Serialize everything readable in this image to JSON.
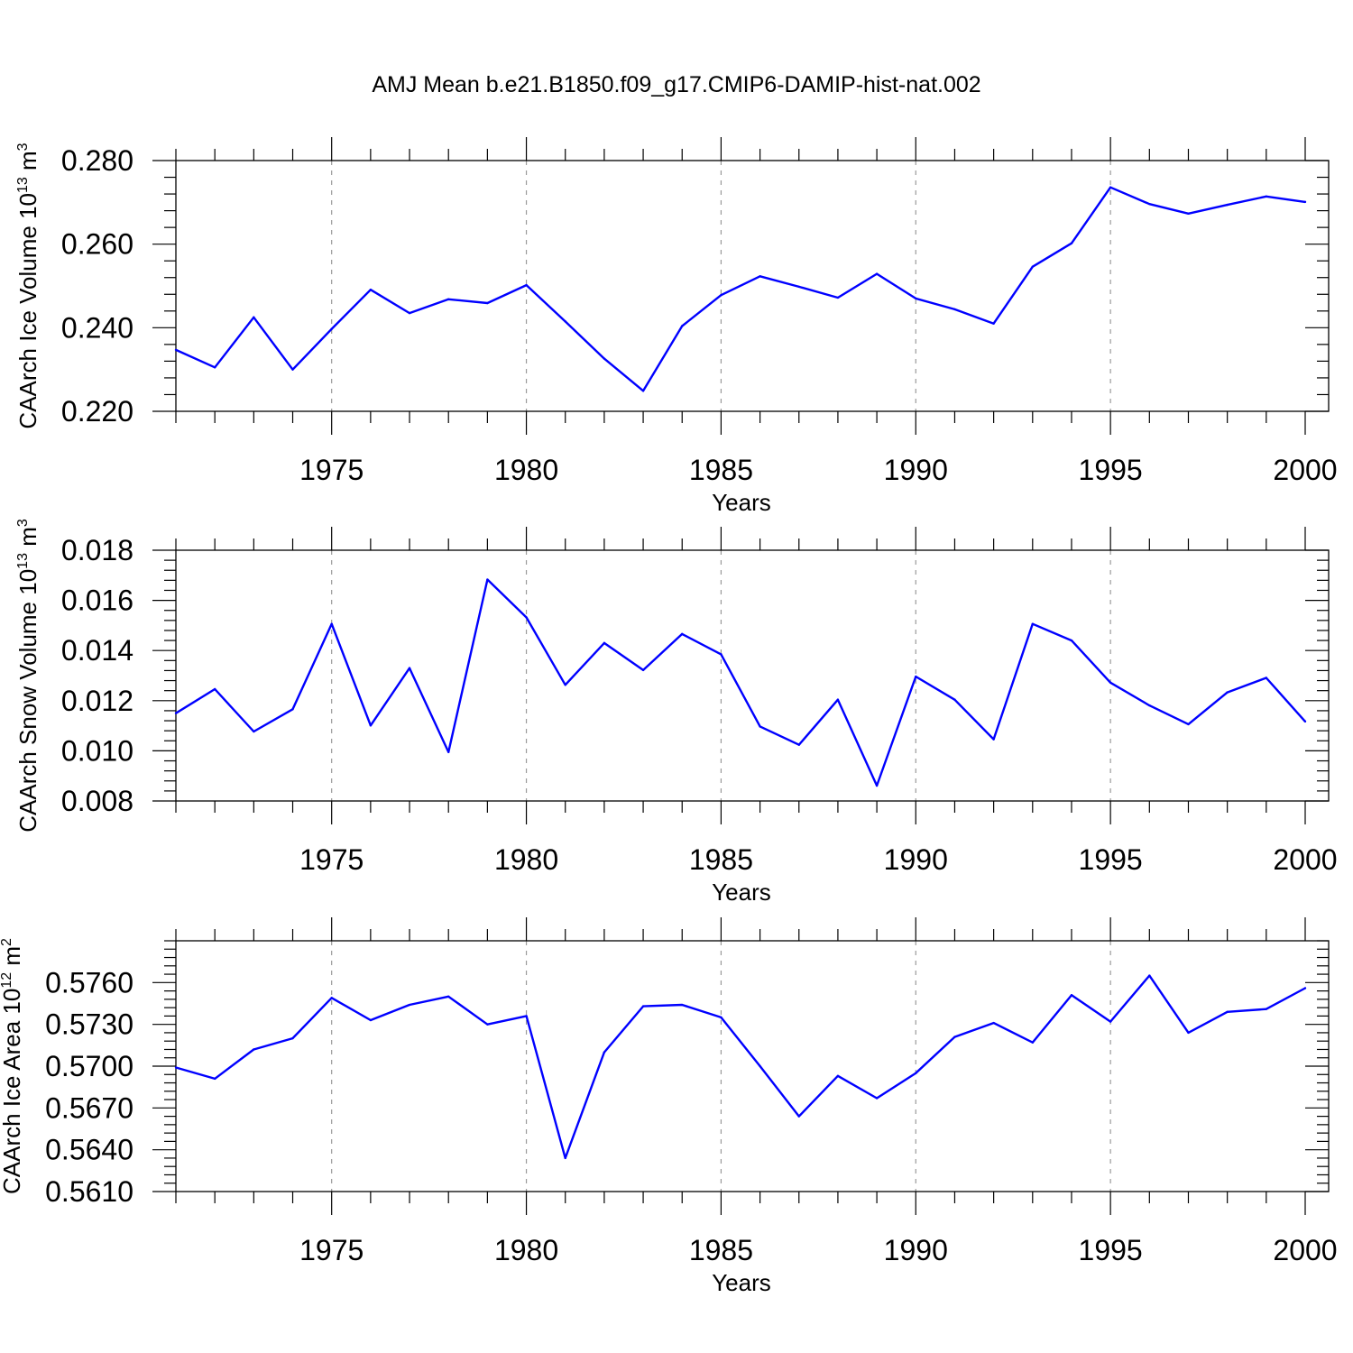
{
  "title": "AMJ Mean b.e21.B1850.f09_g17.CMIP6-DAMIP-hist-nat.002",
  "chart_data": [
    {
      "type": "line",
      "id": "ice-volume",
      "ylabel": {
        "base": "CAArch Ice Volume 10",
        "exp": "13",
        "unit": " m",
        "unit_exp": "3"
      },
      "xlabel": "Years",
      "xlim": [
        1971,
        2000
      ],
      "ylim": [
        0.22,
        0.28
      ],
      "yticks": [
        0.22,
        0.24,
        0.26,
        0.28
      ],
      "ytick_labels": [
        "0.220",
        "0.240",
        "0.260",
        "0.280"
      ],
      "xticks": [
        1975,
        1980,
        1985,
        1990,
        1995,
        2000
      ],
      "xtick_labels": [
        "1975",
        "1980",
        "1985",
        "1990",
        "1995",
        "2000"
      ],
      "grid": "dashed vertical at major x ticks",
      "color": "#0000ff",
      "x": [
        1971,
        1972,
        1973,
        1974,
        1975,
        1976,
        1977,
        1978,
        1979,
        1980,
        1981,
        1982,
        1983,
        1984,
        1985,
        1986,
        1987,
        1988,
        1989,
        1990,
        1991,
        1992,
        1993,
        1994,
        1995,
        1996,
        1997,
        1998,
        1999,
        2000
      ],
      "values": [
        0.2347,
        0.2305,
        0.2425,
        0.23,
        0.2397,
        0.2491,
        0.2435,
        0.2468,
        0.2459,
        0.2502,
        0.2415,
        0.2326,
        0.2249,
        0.2404,
        0.2478,
        0.2523,
        0.2498,
        0.2472,
        0.2529,
        0.247,
        0.2444,
        0.241,
        0.2546,
        0.2602,
        0.2736,
        0.2696,
        0.2673,
        0.2694,
        0.2714,
        0.2701
      ]
    },
    {
      "type": "line",
      "id": "snow-volume",
      "ylabel": {
        "base": "CAArch Snow Volume 10",
        "exp": "13",
        "unit": " m",
        "unit_exp": "3"
      },
      "xlabel": "Years",
      "xlim": [
        1971,
        2000
      ],
      "ylim": [
        0.008,
        0.018
      ],
      "yticks": [
        0.008,
        0.01,
        0.012,
        0.014,
        0.016,
        0.018
      ],
      "ytick_labels": [
        "0.008",
        "0.010",
        "0.012",
        "0.014",
        "0.016",
        "0.018"
      ],
      "xticks": [
        1975,
        1980,
        1985,
        1990,
        1995,
        2000
      ],
      "xtick_labels": [
        "1975",
        "1980",
        "1985",
        "1990",
        "1995",
        "2000"
      ],
      "grid": "dashed vertical at major x ticks",
      "color": "#0000ff",
      "x": [
        1971,
        1972,
        1973,
        1974,
        1975,
        1976,
        1977,
        1978,
        1979,
        1980,
        1981,
        1982,
        1983,
        1984,
        1985,
        1986,
        1987,
        1988,
        1989,
        1990,
        1991,
        1992,
        1993,
        1994,
        1995,
        1996,
        1997,
        1998,
        1999,
        2000
      ],
      "values": [
        0.0115,
        0.01246,
        0.01077,
        0.01166,
        0.01506,
        0.01101,
        0.0133,
        0.00995,
        0.01683,
        0.01532,
        0.01263,
        0.0143,
        0.01322,
        0.01466,
        0.01385,
        0.01097,
        0.01024,
        0.01204,
        0.00861,
        0.01296,
        0.01204,
        0.01046,
        0.01506,
        0.0144,
        0.01272,
        0.01181,
        0.01106,
        0.01233,
        0.01291,
        0.01117
      ]
    },
    {
      "type": "line",
      "id": "ice-area",
      "ylabel": {
        "base": "CAArch Ice Area 10",
        "exp": "12",
        "unit": " m",
        "unit_exp": "2"
      },
      "xlabel": "Years",
      "xlim": [
        1971,
        2000
      ],
      "ylim": [
        0.561,
        0.579
      ],
      "yticks": [
        0.561,
        0.564,
        0.567,
        0.57,
        0.573,
        0.576
      ],
      "ytick_labels": [
        "0.5610",
        "0.5640",
        "0.5670",
        "0.5700",
        "0.5730",
        "0.5760"
      ],
      "xticks": [
        1975,
        1980,
        1985,
        1990,
        1995,
        2000
      ],
      "xtick_labels": [
        "1975",
        "1980",
        "1985",
        "1990",
        "1995",
        "2000"
      ],
      "grid": "dashed vertical at major x ticks",
      "color": "#0000ff",
      "x": [
        1971,
        1972,
        1973,
        1974,
        1975,
        1976,
        1977,
        1978,
        1979,
        1980,
        1981,
        1982,
        1983,
        1984,
        1985,
        1986,
        1987,
        1988,
        1989,
        1990,
        1991,
        1992,
        1993,
        1994,
        1995,
        1996,
        1997,
        1998,
        1999,
        2000
      ],
      "values": [
        0.5699,
        0.5691,
        0.5712,
        0.572,
        0.5749,
        0.5733,
        0.5744,
        0.575,
        0.573,
        0.5736,
        0.5634,
        0.571,
        0.5743,
        0.5744,
        0.5735,
        0.57,
        0.5664,
        0.5693,
        0.5677,
        0.5695,
        0.5721,
        0.5731,
        0.5717,
        0.5751,
        0.5732,
        0.5765,
        0.5724,
        0.5739,
        0.5741,
        0.5756
      ]
    }
  ]
}
